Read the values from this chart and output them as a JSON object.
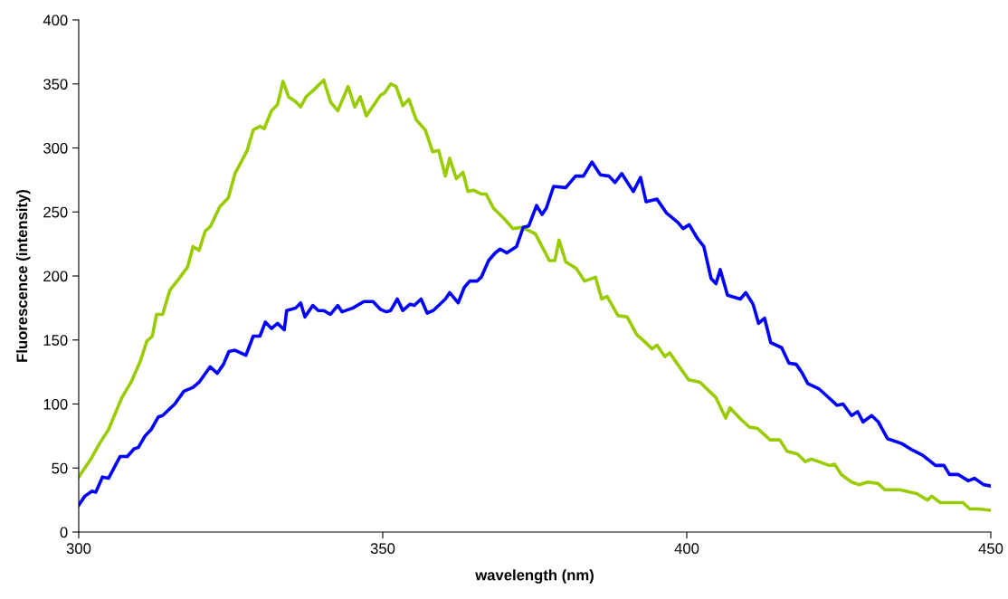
{
  "chart_data": {
    "type": "line",
    "xlabel": "wavelength (nm)",
    "ylabel": "Fluorescence (intensity)",
    "xlim": [
      300,
      450
    ],
    "xticks": [
      300,
      350,
      400,
      450
    ],
    "ylim": [
      0,
      400
    ],
    "yticks": [
      0,
      50,
      100,
      150,
      200,
      250,
      300,
      350,
      400
    ],
    "grid": false,
    "legend": false,
    "marker": "none",
    "line_style": "solid",
    "series": [
      {
        "color": "#99cc00",
        "x": [
          300,
          302,
          303.4,
          304.9,
          307.1,
          308.6,
          310.1,
          311.2,
          312.1,
          312.8,
          313.8,
          315,
          316.5,
          317.9,
          318.8,
          319.8,
          320.8,
          321.7,
          323.2,
          324.6,
          325.7,
          327.7,
          328.7,
          329.8,
          330.5,
          331.7,
          332.7,
          333.6,
          334.5,
          335.7,
          336.5,
          337.4,
          338.8,
          340.3,
          341.4,
          342.6,
          344.3,
          345.4,
          346.3,
          347.3,
          349.6,
          350.3,
          351.3,
          352.2,
          353.3,
          354.3,
          355.5,
          357,
          358.2,
          359.2,
          360.3,
          361,
          362.1,
          363.2,
          364,
          364.9,
          366.2,
          367,
          368.2,
          369.9,
          371.4,
          372.9,
          375.1,
          377.4,
          378.3,
          379,
          380.1,
          381.8,
          383.2,
          385,
          386,
          386.9,
          388.7,
          390.2,
          391.8,
          393,
          394.3,
          395.1,
          396.4,
          397.2,
          398.5,
          400.3,
          402.2,
          403.7,
          404.8,
          406.4,
          407.1,
          408.9,
          410.3,
          411.6,
          413.7,
          415.3,
          416.5,
          418.2,
          419.5,
          420.5,
          422.3,
          423.4,
          424.3,
          425.4,
          427.1,
          428.3,
          429.8,
          431.4,
          432.6,
          435,
          437.8,
          439.6,
          440.3,
          441.7,
          443.9,
          445.4,
          446.6,
          448.1,
          450
        ],
        "values": [
          43,
          57,
          69,
          80,
          105,
          117,
          133,
          149,
          153,
          170,
          170,
          189,
          198,
          207,
          223,
          220,
          235,
          239,
          254,
          261,
          280,
          298,
          314,
          317,
          315,
          329,
          334,
          352,
          340,
          336,
          332,
          340,
          346,
          353,
          336,
          329,
          348,
          332,
          340,
          325,
          341,
          343,
          350,
          348,
          333,
          338,
          322,
          314,
          297,
          298,
          278,
          292,
          276,
          281,
          266,
          267,
          264,
          264,
          253,
          245,
          237,
          238,
          233,
          212,
          212,
          228,
          211,
          206,
          196,
          199,
          182,
          184,
          169,
          168,
          154,
          149,
          143,
          146,
          137,
          140,
          131,
          119,
          117,
          110,
          105,
          89,
          97,
          88,
          82,
          81,
          72,
          72,
          63,
          61,
          55,
          57,
          54,
          52,
          53,
          45,
          39,
          37,
          39,
          38,
          33,
          33,
          30,
          25,
          28,
          23,
          23,
          23,
          18,
          18,
          17
        ]
      },
      {
        "color": "#0000ff",
        "x": [
          300,
          301,
          302.2,
          302.8,
          303.9,
          304.9,
          306.8,
          308,
          309.1,
          309.8,
          310.9,
          311.9,
          313.1,
          313.8,
          315.8,
          317.3,
          318.8,
          319.8,
          321.6,
          322.8,
          323.8,
          324.7,
          325.7,
          327.5,
          328.7,
          329.8,
          330.7,
          331.7,
          332.7,
          333.8,
          334.2,
          335.7,
          336.5,
          337.2,
          338.5,
          339.4,
          340.3,
          341.4,
          342.6,
          343.3,
          345.1,
          346.9,
          348.4,
          349.6,
          350.6,
          351.3,
          352.4,
          353.3,
          354.5,
          355.2,
          356.3,
          357.3,
          358.3,
          360.3,
          361,
          362.4,
          363.4,
          364.3,
          365.5,
          366.2,
          367.4,
          368.5,
          369.3,
          370.4,
          372,
          373.1,
          374,
          375.3,
          376.2,
          376.9,
          378.1,
          380.1,
          381.7,
          383,
          384.4,
          385.8,
          387.2,
          388.2,
          389.3,
          391.2,
          392.4,
          393.3,
          395.1,
          396.7,
          398.5,
          399.4,
          400.4,
          401.8,
          402.8,
          404,
          404.8,
          405.5,
          406.7,
          408.8,
          409.7,
          410.9,
          411.8,
          412.8,
          413.8,
          415.6,
          416.8,
          418,
          419,
          419.9,
          421.7,
          423.1,
          424.7,
          425.7,
          427.1,
          428.1,
          429,
          430.4,
          431.5,
          433,
          435.4,
          437.1,
          438.8,
          440.9,
          442.3,
          443.2,
          444.6,
          446.3,
          447.3,
          448.8,
          450
        ],
        "values": [
          21,
          28,
          32,
          31,
          43,
          42,
          59,
          59,
          65,
          66,
          75,
          80,
          90,
          91,
          100,
          110,
          113,
          117,
          129,
          124,
          131,
          141,
          142,
          138,
          153,
          153,
          164,
          159,
          163,
          158,
          173,
          175,
          179,
          168,
          177,
          173,
          173,
          170,
          177,
          172,
          175,
          180,
          180,
          174,
          172,
          173,
          182,
          173,
          178,
          177,
          182,
          171,
          173,
          182,
          187,
          179,
          191,
          196,
          196,
          199,
          212,
          218,
          221,
          218,
          223,
          238,
          239,
          255,
          248,
          253,
          270,
          269,
          278,
          278,
          289,
          279,
          278,
          273,
          280,
          266,
          277,
          258,
          260,
          249,
          242,
          237,
          240,
          229,
          223,
          198,
          194,
          205,
          185,
          182,
          187,
          178,
          163,
          167,
          148,
          144,
          132,
          131,
          124,
          116,
          112,
          106,
          99,
          100,
          91,
          94,
          86,
          91,
          86,
          73,
          69,
          64,
          60,
          52,
          52,
          45,
          45,
          40,
          42,
          37,
          36
        ]
      }
    ]
  }
}
